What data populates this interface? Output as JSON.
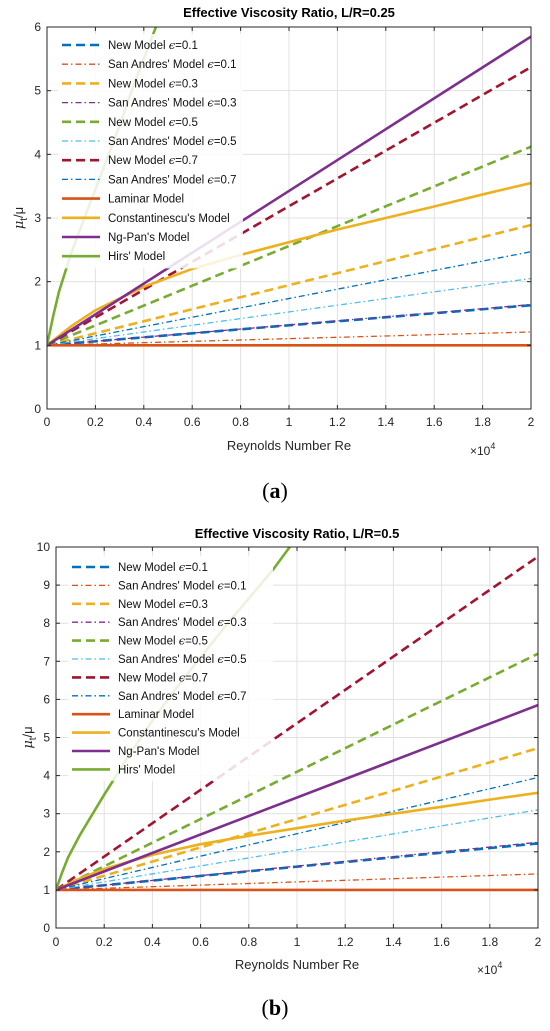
{
  "chart_data": [
    {
      "type": "line",
      "title": "Effective Viscosity Ratio, L/R=0.25",
      "xlabel": "Reynolds Number Re",
      "ylabel_main": "μ",
      "ylabel_sub": "t",
      "ylabel_tail": "/μ",
      "exponent_base": "×10",
      "exponent_power": "4",
      "caption_open": "(",
      "caption_letter": "a",
      "caption_close": ")",
      "xlim": [
        0,
        20000
      ],
      "ylim": [
        0,
        6
      ],
      "xticks": [
        0,
        2000,
        4000,
        6000,
        8000,
        10000,
        12000,
        14000,
        16000,
        18000,
        20000
      ],
      "xtick_labels": [
        "0",
        "0.2",
        "0.4",
        "0.6",
        "0.8",
        "1",
        "1.2",
        "1.4",
        "1.6",
        "1.8",
        "2"
      ],
      "yticks": [
        0,
        1,
        2,
        3,
        4,
        5,
        6
      ],
      "ytick_labels": [
        "0",
        "1",
        "2",
        "3",
        "4",
        "5",
        "6"
      ],
      "grid": true,
      "legend_position": "top-left",
      "series": [
        {
          "legend_main": "New Model ",
          "legend_eps": "ϵ",
          "legend_tail": "=0.1",
          "color": "#0072BD",
          "style": "dashed",
          "x": [
            0,
            20000
          ],
          "y": [
            1,
            1.63
          ]
        },
        {
          "legend_main": "San Andres' Model ",
          "legend_eps": "ϵ",
          "legend_tail": "=0.1",
          "color": "#D95319",
          "style": "dashdot",
          "x": [
            0,
            20000
          ],
          "y": [
            1,
            1.21
          ]
        },
        {
          "legend_main": "New Model ",
          "legend_eps": "ϵ",
          "legend_tail": "=0.3",
          "color": "#EDB120",
          "style": "dashed",
          "x": [
            0,
            20000
          ],
          "y": [
            1,
            2.89
          ]
        },
        {
          "legend_main": "San Andres' Model ",
          "legend_eps": "ϵ",
          "legend_tail": "=0.3",
          "color": "#7E2F8E",
          "style": "dashdot",
          "x": [
            0,
            20000
          ],
          "y": [
            1,
            1.64
          ]
        },
        {
          "legend_main": "New Model ",
          "legend_eps": "ϵ",
          "legend_tail": "=0.5",
          "color": "#77AC30",
          "style": "dashed",
          "x": [
            0,
            20000
          ],
          "y": [
            1,
            4.12
          ]
        },
        {
          "legend_main": "San Andres' Model ",
          "legend_eps": "ϵ",
          "legend_tail": "=0.5",
          "color": "#4DBEEE",
          "style": "dashdot",
          "x": [
            0,
            20000
          ],
          "y": [
            1,
            2.05
          ]
        },
        {
          "legend_main": "New Model ",
          "legend_eps": "ϵ",
          "legend_tail": "=0.7",
          "color": "#A2142F",
          "style": "dashed",
          "x": [
            0,
            20000
          ],
          "y": [
            1,
            5.37
          ]
        },
        {
          "legend_main": "San Andres' Model ",
          "legend_eps": "ϵ",
          "legend_tail": "=0.7",
          "color": "#0072BD",
          "style": "dashdot",
          "x": [
            0,
            20000
          ],
          "y": [
            1,
            2.47
          ]
        },
        {
          "legend_main": "Laminar Model",
          "legend_eps": "",
          "legend_tail": "",
          "color": "#D95319",
          "style": "solid",
          "x": [
            0,
            20000
          ],
          "y": [
            1,
            1
          ]
        },
        {
          "legend_main": "Constantinescu's Model",
          "legend_eps": "",
          "legend_tail": "",
          "color": "#EDB120",
          "style": "solid",
          "x": [
            0,
            1000,
            2000,
            4000,
            6000,
            8000,
            10000,
            12000,
            14000,
            16000,
            18000,
            20000
          ],
          "y": [
            1,
            1.3,
            1.55,
            1.92,
            2.2,
            2.42,
            2.62,
            2.82,
            3.0,
            3.18,
            3.37,
            3.55
          ]
        },
        {
          "legend_main": "Ng-Pan's Model",
          "legend_eps": "",
          "legend_tail": "",
          "color": "#7E2F8E",
          "style": "solid",
          "x": [
            0,
            20000
          ],
          "y": [
            1,
            5.85
          ]
        },
        {
          "legend_main": "Hirs' Model",
          "legend_eps": "",
          "legend_tail": "",
          "color": "#77AC30",
          "style": "solid",
          "x": [
            0,
            250,
            500,
            1000,
            1500,
            2000,
            2500,
            3000,
            3500,
            4000,
            4500
          ],
          "y": [
            1,
            1.45,
            1.85,
            2.45,
            2.95,
            3.45,
            3.95,
            4.45,
            5.0,
            5.5,
            6.0
          ]
        }
      ]
    },
    {
      "type": "line",
      "title": "Effective Viscosity Ratio, L/R=0.5",
      "xlabel": "Reynolds Number Re",
      "ylabel_main": "μ",
      "ylabel_sub": "t",
      "ylabel_tail": "/μ",
      "exponent_base": "×10",
      "exponent_power": "4",
      "caption_open": "(",
      "caption_letter": "b",
      "caption_close": ")",
      "xlim": [
        0,
        20000
      ],
      "ylim": [
        0,
        10
      ],
      "xticks": [
        0,
        2000,
        4000,
        6000,
        8000,
        10000,
        12000,
        14000,
        16000,
        18000,
        20000
      ],
      "xtick_labels": [
        "0",
        "0.2",
        "0.4",
        "0.6",
        "0.8",
        "1",
        "1.2",
        "1.4",
        "1.6",
        "1.8",
        "2"
      ],
      "yticks": [
        0,
        1,
        2,
        3,
        4,
        5,
        6,
        7,
        8,
        9,
        10
      ],
      "ytick_labels": [
        "0",
        "1",
        "2",
        "3",
        "4",
        "5",
        "6",
        "7",
        "8",
        "9",
        "10"
      ],
      "grid": true,
      "legend_position": "top-left",
      "series": [
        {
          "legend_main": "New Model ",
          "legend_eps": "ϵ",
          "legend_tail": "=0.1",
          "color": "#0072BD",
          "style": "dashed",
          "x": [
            0,
            20000
          ],
          "y": [
            1,
            2.22
          ]
        },
        {
          "legend_main": "San Andres' Model ",
          "legend_eps": "ϵ",
          "legend_tail": "=0.1",
          "color": "#D95319",
          "style": "dashdot",
          "x": [
            0,
            20000
          ],
          "y": [
            1,
            1.42
          ]
        },
        {
          "legend_main": "New Model ",
          "legend_eps": "ϵ",
          "legend_tail": "=0.3",
          "color": "#EDB120",
          "style": "dashed",
          "x": [
            0,
            20000
          ],
          "y": [
            1,
            4.72
          ]
        },
        {
          "legend_main": "San Andres' Model ",
          "legend_eps": "ϵ",
          "legend_tail": "=0.3",
          "color": "#7E2F8E",
          "style": "dashdot",
          "x": [
            0,
            20000
          ],
          "y": [
            1,
            2.25
          ]
        },
        {
          "legend_main": "New Model ",
          "legend_eps": "ϵ",
          "legend_tail": "=0.5",
          "color": "#77AC30",
          "style": "dashed",
          "x": [
            0,
            20000
          ],
          "y": [
            1,
            7.2
          ]
        },
        {
          "legend_main": "San Andres' Model ",
          "legend_eps": "ϵ",
          "legend_tail": "=0.5",
          "color": "#4DBEEE",
          "style": "dashdot",
          "x": [
            0,
            20000
          ],
          "y": [
            1,
            3.1
          ]
        },
        {
          "legend_main": "New Model ",
          "legend_eps": "ϵ",
          "legend_tail": "=0.7",
          "color": "#A2142F",
          "style": "dashed",
          "x": [
            0,
            20000
          ],
          "y": [
            1,
            9.75
          ]
        },
        {
          "legend_main": "San Andres' Model ",
          "legend_eps": "ϵ",
          "legend_tail": "=0.7",
          "color": "#0072BD",
          "style": "dashdot",
          "x": [
            0,
            20000
          ],
          "y": [
            1,
            3.95
          ]
        },
        {
          "legend_main": "Laminar Model",
          "legend_eps": "",
          "legend_tail": "",
          "color": "#D95319",
          "style": "solid",
          "x": [
            0,
            20000
          ],
          "y": [
            1,
            1
          ]
        },
        {
          "legend_main": "Constantinescu's Model",
          "legend_eps": "",
          "legend_tail": "",
          "color": "#EDB120",
          "style": "solid",
          "x": [
            0,
            1000,
            2000,
            4000,
            6000,
            8000,
            10000,
            12000,
            14000,
            16000,
            18000,
            20000
          ],
          "y": [
            1,
            1.3,
            1.55,
            1.92,
            2.2,
            2.42,
            2.62,
            2.82,
            3.0,
            3.18,
            3.37,
            3.55
          ]
        },
        {
          "legend_main": "Ng-Pan's Model",
          "legend_eps": "",
          "legend_tail": "",
          "color": "#7E2F8E",
          "style": "solid",
          "x": [
            0,
            20000
          ],
          "y": [
            1,
            5.85
          ]
        },
        {
          "legend_main": "Hirs' Model",
          "legend_eps": "",
          "legend_tail": "",
          "color": "#77AC30",
          "style": "solid",
          "x": [
            0,
            250,
            500,
            1000,
            2000,
            3000,
            4000,
            5000,
            6000,
            7000,
            8000,
            9000,
            9700
          ],
          "y": [
            1,
            1.45,
            1.85,
            2.45,
            3.5,
            4.5,
            5.45,
            6.3,
            7.1,
            7.9,
            8.65,
            9.4,
            10.0
          ]
        }
      ]
    }
  ]
}
